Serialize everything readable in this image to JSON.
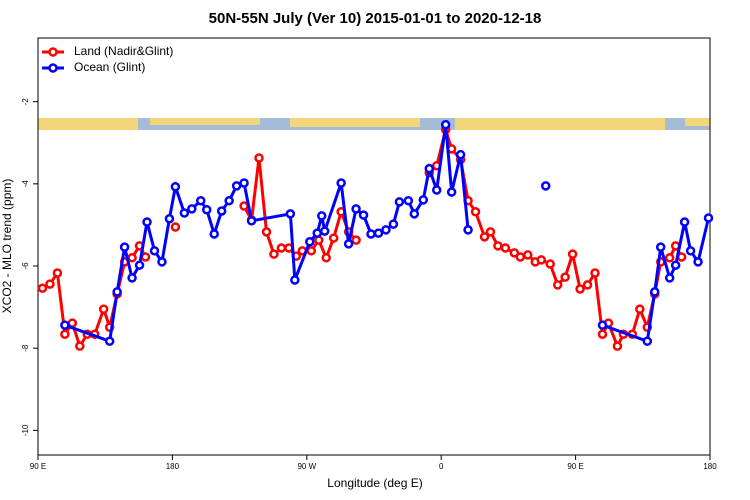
{
  "chart_data": {
    "type": "line",
    "title": "50N-55N July (Ver 10)   2015-01-01 to 2020-12-18",
    "x_label": "Longitude (deg E)",
    "y_label": "XCO2 - MLO trend (ppm)",
    "xlim": [
      90,
      540
    ],
    "xticks": [
      {
        "value": 90,
        "label": "90 E"
      },
      {
        "value": 180,
        "label": "180"
      },
      {
        "value": 270,
        "label": "90 W"
      },
      {
        "value": 360,
        "label": "0"
      },
      {
        "value": 450,
        "label": "90 E"
      },
      {
        "value": 540,
        "label": "180"
      }
    ],
    "ylim": [
      -10.6,
      -0.45
    ],
    "yticks": [
      -2,
      -4,
      -6,
      -8,
      -10
    ],
    "legend": "top-left",
    "series": [
      {
        "name": "Land (Nadir&Glint)",
        "color": "#ff0000",
        "x": [
          93,
          98,
          103,
          108,
          113,
          118,
          123,
          128,
          134,
          138,
          143,
          148,
          153,
          158,
          162,
          null,
          182,
          null,
          228,
          233,
          238,
          243,
          248,
          253,
          258,
          263,
          267,
          273,
          278,
          283,
          288,
          293,
          298,
          303,
          null,
          352,
          357,
          363,
          367,
          373,
          378,
          383,
          389,
          393,
          398,
          403,
          409,
          413,
          418,
          423,
          427,
          433,
          438,
          443,
          448,
          453,
          458,
          463,
          468,
          472,
          478,
          482,
          488,
          493,
          498,
          503,
          507,
          513,
          517,
          521
        ],
        "values": [
          -6.54,
          -6.44,
          -6.17,
          -7.66,
          -7.39,
          -7.95,
          -7.66,
          -7.66,
          -7.05,
          -7.49,
          -6.68,
          -5.9,
          -5.8,
          -5.51,
          -5.78,
          null,
          -5.05,
          null,
          -4.54,
          -4.88,
          -3.37,
          -5.17,
          -5.71,
          -5.56,
          -5.56,
          -5.76,
          -5.63,
          -5.63,
          -5.37,
          -5.8,
          -5.32,
          -4.68,
          -5.17,
          -5.37,
          null,
          -3.73,
          -3.56,
          -2.68,
          -3.15,
          -3.41,
          -4.41,
          -4.68,
          -5.29,
          -5.17,
          -5.51,
          -5.56,
          -5.68,
          -5.78,
          -5.73,
          -5.9,
          -5.85,
          -5.95,
          -6.46,
          -6.27,
          -5.71,
          -6.56,
          -6.46,
          -6.17,
          -7.66,
          -7.39,
          -7.95,
          -7.66,
          -7.66,
          -7.05,
          -7.49,
          -6.68,
          -5.9,
          -5.8,
          -5.51,
          -5.78
        ]
      },
      {
        "name": "Ocean (Glint)",
        "color": "#0000ff",
        "x": [
          108,
          138,
          143,
          148,
          153,
          158,
          163,
          168,
          173,
          178,
          182,
          188,
          193,
          199,
          203,
          208,
          213,
          218,
          223,
          228,
          233,
          259,
          262,
          272,
          277,
          280,
          282,
          293,
          298,
          303,
          308,
          313,
          318,
          323,
          328,
          332,
          338,
          342,
          348,
          352,
          357,
          363,
          367,
          373,
          378,
          null,
          430,
          null,
          468,
          498,
          503,
          507,
          513,
          517,
          523,
          527,
          532,
          539
        ],
        "values": [
          -7.44,
          -7.83,
          -6.63,
          -5.54,
          -6.29,
          -5.98,
          -4.93,
          -5.63,
          -5.9,
          -4.85,
          -4.07,
          -4.71,
          -4.61,
          -4.41,
          -4.63,
          -5.22,
          -4.66,
          -4.41,
          -4.05,
          -3.98,
          -4.9,
          -4.73,
          -6.34,
          -5.41,
          -5.2,
          -4.78,
          -5.15,
          -3.98,
          -5.46,
          -4.61,
          -4.76,
          -5.22,
          -5.2,
          -5.12,
          -4.98,
          -4.44,
          -4.41,
          -4.73,
          -4.39,
          -3.63,
          -4.15,
          -2.56,
          -4.2,
          -3.29,
          -5.12,
          null,
          -4.05,
          null,
          -7.44,
          -7.83,
          -6.63,
          -5.54,
          -6.29,
          -5.98,
          -4.93,
          -5.63,
          -5.9,
          -4.83
        ]
      }
    ]
  }
}
